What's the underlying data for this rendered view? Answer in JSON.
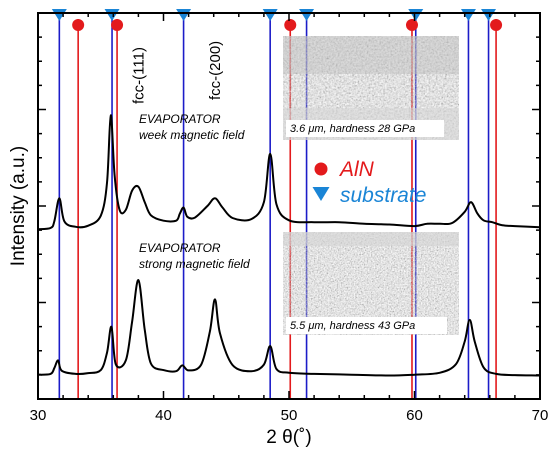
{
  "chart_data": {
    "type": "line",
    "xlabel": "2 θ(˚)",
    "ylabel": "Intensity (a.u.)",
    "xlim": [
      30,
      70
    ],
    "ylim": [
      0,
      100
    ],
    "x_ticks": [
      "30",
      "40",
      "50",
      "60",
      "70"
    ],
    "grid": false,
    "series": [
      {
        "name": "EVAPORATOR week magnetic field",
        "x": [
          30,
          31,
          31.3,
          31.7,
          32.1,
          33,
          34,
          35,
          35.5,
          35.8,
          36.1,
          36.5,
          37,
          37.5,
          38,
          38.5,
          39,
          40,
          41,
          41.3,
          41.6,
          41.9,
          42.5,
          43.5,
          44.1,
          44.7,
          45.5,
          47,
          48,
          48.5,
          49,
          50,
          52,
          54,
          56,
          58,
          60,
          61,
          62,
          63,
          64,
          64.5,
          65,
          65.5,
          66.2,
          67,
          68,
          70
        ],
        "y": [
          44,
          44.3,
          46,
          52,
          46,
          44.6,
          44.9,
          47.5,
          56,
          73.5,
          58,
          49,
          49,
          54,
          55,
          51,
          47.6,
          46.2,
          46.2,
          48,
          49.6,
          47.2,
          47,
          50,
          52,
          49.6,
          46.9,
          46.6,
          51,
          63.5,
          50.5,
          46.3,
          45.8,
          45.8,
          45.4,
          45.2,
          44.8,
          45.4,
          45.4,
          45.6,
          48.5,
          51,
          48.1,
          46.3,
          45.8,
          45,
          44.8,
          44.5
        ]
      },
      {
        "name": "EVAPORATOR strong magnetic field",
        "x": [
          30,
          31,
          31.3,
          31.6,
          31.9,
          33,
          34,
          35,
          35.5,
          35.85,
          36.2,
          37,
          37.5,
          38,
          38.5,
          39,
          40,
          41,
          41.5,
          42,
          43,
          43.7,
          44.1,
          44.5,
          45.5,
          47,
          48,
          48.5,
          49,
          50,
          52,
          55,
          58,
          60,
          62,
          63.3,
          64,
          64.4,
          64.8,
          65.5,
          66.5,
          68,
          70
        ],
        "y": [
          6.3,
          6.5,
          8,
          10,
          7.3,
          6.5,
          6.7,
          7.5,
          12,
          18.7,
          9,
          10,
          20,
          30.8,
          18,
          9.2,
          7.5,
          7.2,
          8.7,
          7.4,
          8.9,
          17.5,
          25.8,
          17,
          8.8,
          7.2,
          8.9,
          13.7,
          7.8,
          6.8,
          6.5,
          6.3,
          6.1,
          6.3,
          6.8,
          9,
          14.9,
          20.5,
          14.9,
          8.2,
          6.5,
          6.2,
          6.1
        ]
      }
    ],
    "vertical_lines": [
      {
        "name": "AlN",
        "color": "#e31a1c",
        "x": [
          33.2,
          36.3,
          50.1,
          59.8,
          66.5
        ]
      },
      {
        "name": "substrate",
        "color": "#1c1cc8",
        "x": [
          31.7,
          35.9,
          41.6,
          48.5,
          51.4,
          60.1,
          64.3,
          65.9
        ]
      }
    ],
    "marker_rows": [
      {
        "name": "AlN",
        "symbol": "circle",
        "color": "#e31a1c",
        "x": [
          33.2,
          36.3,
          50.1,
          59.8,
          66.5
        ]
      },
      {
        "name": "substrate",
        "symbol": "triangle-down",
        "color": "#1a85d6",
        "x": [
          31.7,
          35.9,
          41.6,
          48.5,
          51.4,
          60.1,
          64.3,
          65.9
        ]
      }
    ],
    "annotations": {
      "fcc_111": {
        "text": "fcc-(111)",
        "x": 38
      },
      "fcc_200": {
        "text": "fcc-(200)",
        "x": 44.1
      }
    },
    "trace_labels": [
      {
        "line1": "EVAPORATOR",
        "line2": "week magnetic field"
      },
      {
        "line1": "EVAPORATOR",
        "line2": "strong magnetic field"
      }
    ],
    "legend": {
      "placement": "right-middle",
      "entries": [
        {
          "label": "AlN",
          "symbol": "circle",
          "color": "#e31a1c"
        },
        {
          "label": "substrate",
          "symbol": "triangle-down",
          "color": "#1a85d6"
        }
      ]
    },
    "insets": [
      {
        "caption": "3.6 μm, hardness 28 GPa",
        "kind": "sem-micrograph"
      },
      {
        "caption": "5.5 μm, hardness 43 GPa",
        "kind": "sem-micrograph"
      }
    ]
  }
}
